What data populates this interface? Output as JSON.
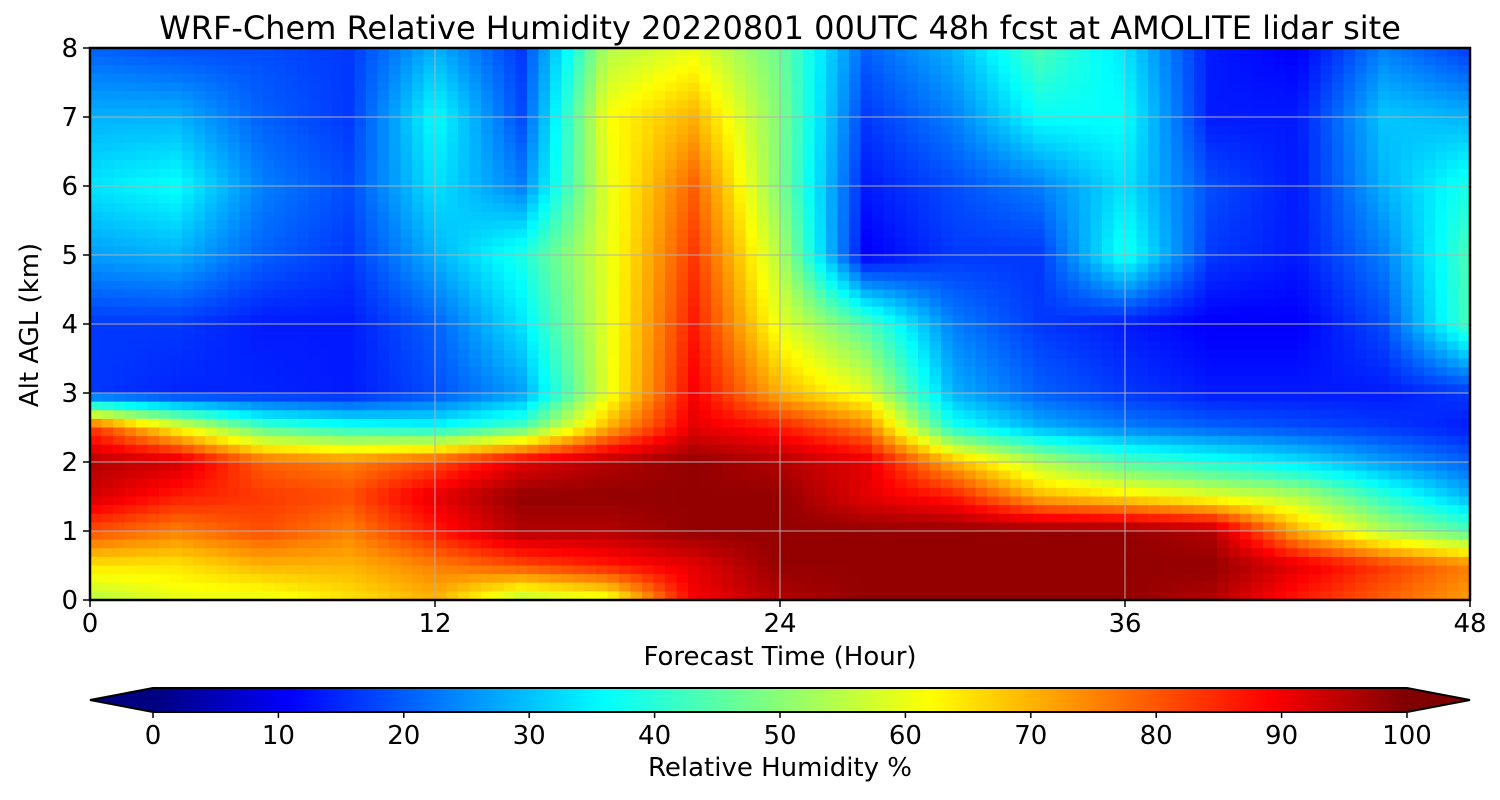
{
  "chart_data": {
    "type": "heatmap",
    "title": "WRF-Chem Relative Humidity 20220801 00UTC 48h fcst at AMOLITE lidar site",
    "xlabel": "Forecast Time (Hour)",
    "ylabel": "Alt AGL (km)",
    "colorbar_label": "Relative Humidity %",
    "xlim": [
      0,
      48
    ],
    "ylim": [
      0,
      8
    ],
    "x_ticks": [
      "0",
      "12",
      "24",
      "36",
      "48"
    ],
    "y_ticks": [
      "0",
      "1",
      "2",
      "3",
      "4",
      "5",
      "6",
      "7",
      "8"
    ],
    "colorbar_ticks": [
      "0",
      "10",
      "20",
      "30",
      "40",
      "50",
      "60",
      "70",
      "80",
      "90",
      "100"
    ],
    "colorbar_range": [
      0,
      100
    ],
    "colormap": "jet",
    "grid": true,
    "x": [
      0,
      3,
      6,
      9,
      12,
      15,
      18,
      21,
      24,
      27,
      30,
      33,
      36,
      39,
      42,
      45,
      48
    ],
    "y": [
      0,
      0.5,
      1,
      1.5,
      2,
      2.5,
      3,
      4,
      5,
      6,
      7,
      8
    ],
    "values": [
      [
        55,
        60,
        60,
        65,
        70,
        55,
        60,
        88,
        95,
        98,
        98,
        98,
        98,
        95,
        85,
        78,
        72
      ],
      [
        65,
        65,
        70,
        70,
        75,
        80,
        85,
        90,
        98,
        98,
        98,
        98,
        98,
        98,
        90,
        82,
        75
      ],
      [
        80,
        75,
        80,
        75,
        85,
        95,
        95,
        98,
        98,
        98,
        98,
        98,
        98,
        95,
        70,
        55,
        45
      ],
      [
        92,
        85,
        82,
        80,
        90,
        98,
        98,
        98,
        98,
        90,
        85,
        70,
        65,
        60,
        55,
        42,
        30
      ],
      [
        95,
        92,
        78,
        75,
        80,
        90,
        95,
        98,
        95,
        90,
        70,
        55,
        45,
        40,
        35,
        28,
        22
      ],
      [
        82,
        62,
        45,
        40,
        38,
        45,
        70,
        90,
        85,
        75,
        40,
        30,
        25,
        22,
        20,
        18,
        15
      ],
      [
        18,
        16,
        16,
        15,
        20,
        28,
        60,
        88,
        70,
        60,
        30,
        22,
        18,
        15,
        15,
        15,
        18
      ],
      [
        18,
        18,
        15,
        15,
        22,
        35,
        60,
        85,
        60,
        45,
        25,
        18,
        15,
        12,
        12,
        20,
        45
      ],
      [
        28,
        30,
        22,
        18,
        30,
        40,
        60,
        82,
        55,
        12,
        18,
        18,
        40,
        18,
        15,
        25,
        45
      ],
      [
        35,
        38,
        25,
        20,
        35,
        25,
        60,
        78,
        50,
        15,
        20,
        25,
        35,
        20,
        15,
        30,
        40
      ],
      [
        30,
        30,
        22,
        18,
        38,
        20,
        62,
        70,
        50,
        18,
        25,
        38,
        38,
        15,
        15,
        32,
        30
      ],
      [
        22,
        20,
        20,
        18,
        30,
        18,
        55,
        60,
        48,
        22,
        30,
        45,
        35,
        15,
        12,
        25,
        18
      ]
    ]
  }
}
